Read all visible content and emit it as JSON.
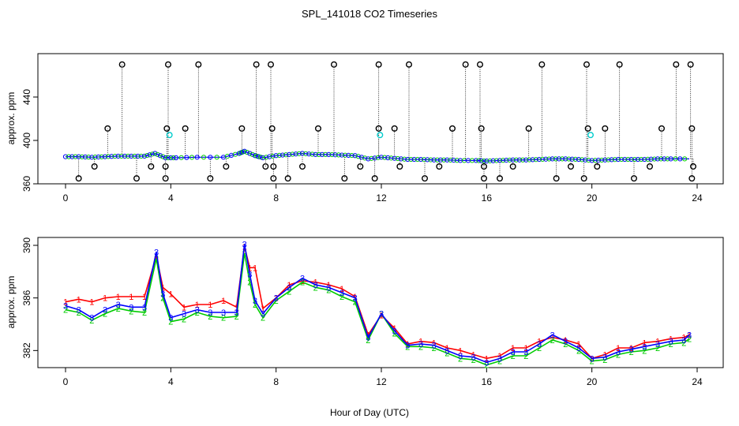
{
  "title": "SPL_141018  CO2 Timeseries",
  "xlabel": "Hour of Day (UTC)",
  "colors": {
    "series1": "#ff0000",
    "series2": "#00cc00",
    "series3": "#0000ff",
    "qc_black": "#000000",
    "qc_cyan": "#00cccc"
  },
  "chart_data": [
    {
      "type": "scatter",
      "panel": "top",
      "ylabel": "approx. ppm",
      "xlim": [
        0,
        24
      ],
      "ylim": [
        360,
        480
      ],
      "xticks": [
        0,
        4,
        8,
        12,
        16,
        20,
        24
      ],
      "yticks": [
        360,
        400,
        440
      ],
      "series": [
        {
          "values": [
            [
              0,
              385
            ],
            [
              0.5,
              385
            ],
            [
              1,
              384.5
            ],
            [
              1.5,
              385
            ],
            [
              2,
              385.5
            ],
            [
              2.5,
              385.5
            ],
            [
              3,
              385.5
            ],
            [
              3.4,
              388
            ],
            [
              3.8,
              384
            ],
            [
              4.2,
              384
            ],
            [
              5,
              384.5
            ],
            [
              6,
              384.5
            ],
            [
              6.6,
              388
            ],
            [
              6.8,
              390
            ],
            [
              7.2,
              386
            ],
            [
              7.5,
              384
            ],
            [
              8,
              386
            ],
            [
              8.5,
              387
            ],
            [
              9,
              388
            ],
            [
              9.5,
              387
            ],
            [
              10,
              387
            ],
            [
              10.5,
              386.5
            ],
            [
              11,
              386
            ],
            [
              11.5,
              383
            ],
            [
              12,
              384.5
            ],
            [
              12.5,
              383.5
            ],
            [
              13,
              382.5
            ],
            [
              13.5,
              382.5
            ],
            [
              14,
              382
            ],
            [
              14.5,
              382
            ],
            [
              15,
              381.5
            ],
            [
              15.6,
              381.5
            ],
            [
              16,
              381
            ],
            [
              16.5,
              381.5
            ],
            [
              17,
              382
            ],
            [
              17.5,
              382
            ],
            [
              18,
              382.5
            ],
            [
              18.5,
              383
            ],
            [
              19,
              383
            ],
            [
              19.5,
              382.5
            ],
            [
              20,
              381.5
            ],
            [
              20.5,
              382
            ],
            [
              21,
              382.5
            ],
            [
              21.5,
              382.5
            ],
            [
              22,
              382.5
            ],
            [
              22.5,
              383
            ],
            [
              23,
              383
            ],
            [
              23.7,
              383
            ]
          ]
        }
      ],
      "flagged_high": [
        [
          1.6,
          411
        ],
        [
          2.15,
          470
        ],
        [
          3.9,
          470
        ],
        [
          3.85,
          411
        ],
        [
          4.55,
          411
        ],
        [
          5.05,
          470
        ],
        [
          6.7,
          411
        ],
        [
          7.25,
          470
        ],
        [
          7.8,
          470
        ],
        [
          7.85,
          411
        ],
        [
          9.6,
          411
        ],
        [
          10.2,
          470
        ],
        [
          11.9,
          470
        ],
        [
          11.9,
          411
        ],
        [
          12.5,
          411
        ],
        [
          13.05,
          470
        ],
        [
          14.7,
          411
        ],
        [
          15.2,
          470
        ],
        [
          15.75,
          470
        ],
        [
          15.8,
          411
        ],
        [
          17.6,
          411
        ],
        [
          18.1,
          470
        ],
        [
          19.8,
          470
        ],
        [
          19.85,
          411
        ],
        [
          20.5,
          411
        ],
        [
          21.05,
          470
        ],
        [
          22.65,
          411
        ],
        [
          23.2,
          470
        ],
        [
          23.75,
          470
        ],
        [
          23.8,
          411
        ]
      ],
      "flagged_low": [
        [
          0.5,
          365
        ],
        [
          1.1,
          376
        ],
        [
          2.7,
          365
        ],
        [
          3.25,
          376
        ],
        [
          3.8,
          365
        ],
        [
          3.8,
          376
        ],
        [
          5.5,
          365
        ],
        [
          6.1,
          376
        ],
        [
          7.6,
          376
        ],
        [
          7.9,
          365
        ],
        [
          7.9,
          376
        ],
        [
          8.45,
          365
        ],
        [
          9.0,
          376
        ],
        [
          10.6,
          365
        ],
        [
          11.2,
          376
        ],
        [
          11.75,
          365
        ],
        [
          12.7,
          376
        ],
        [
          13.65,
          365
        ],
        [
          14.2,
          376
        ],
        [
          15.9,
          365
        ],
        [
          15.9,
          376
        ],
        [
          16.5,
          365
        ],
        [
          17.0,
          376
        ],
        [
          18.65,
          365
        ],
        [
          19.2,
          376
        ],
        [
          19.7,
          365
        ],
        [
          20.2,
          376
        ],
        [
          21.6,
          365
        ],
        [
          22.2,
          376
        ],
        [
          23.8,
          365
        ],
        [
          23.85,
          376
        ]
      ],
      "flagged_cyan": [
        [
          3.95,
          405
        ],
        [
          11.95,
          405
        ],
        [
          19.95,
          405
        ]
      ]
    },
    {
      "type": "line",
      "panel": "bottom",
      "ylabel": "approx. ppm",
      "xlim": [
        0,
        24
      ],
      "ylim": [
        380.7,
        390.6
      ],
      "xticks": [
        0,
        4,
        8,
        12,
        16,
        20,
        24
      ],
      "yticks": [
        382,
        386,
        390
      ],
      "series": [
        {
          "marker": "1",
          "values": [
            [
              0,
              385.7
            ],
            [
              0.5,
              385.9
            ],
            [
              1,
              385.7
            ],
            [
              1.5,
              386
            ],
            [
              2,
              386.1
            ],
            [
              2.5,
              386.1
            ],
            [
              3,
              386.1
            ],
            [
              3.45,
              389.2
            ],
            [
              3.7,
              386.8
            ],
            [
              4,
              386.3
            ],
            [
              4.5,
              385.3
            ],
            [
              5,
              385.5
            ],
            [
              5.5,
              385.5
            ],
            [
              6,
              385.8
            ],
            [
              6.5,
              385.3
            ],
            [
              6.8,
              389.9
            ],
            [
              7,
              388.3
            ],
            [
              7.2,
              388.3
            ],
            [
              7.5,
              385.2
            ],
            [
              8,
              386
            ],
            [
              8.5,
              387
            ],
            [
              9,
              387.3
            ],
            [
              9.5,
              387.2
            ],
            [
              10,
              387
            ],
            [
              10.5,
              386.7
            ],
            [
              11,
              386.1
            ],
            [
              11.5,
              383.2
            ],
            [
              12,
              384.7
            ],
            [
              12.5,
              383.7
            ],
            [
              13,
              382.5
            ],
            [
              13.5,
              382.7
            ],
            [
              14,
              382.6
            ],
            [
              14.5,
              382.2
            ],
            [
              15,
              382
            ],
            [
              15.5,
              381.7
            ],
            [
              16,
              381.4
            ],
            [
              16.5,
              381.6
            ],
            [
              17,
              382.2
            ],
            [
              17.5,
              382.2
            ],
            [
              18,
              382.7
            ],
            [
              18.5,
              383
            ],
            [
              19,
              382.8
            ],
            [
              19.5,
              382.5
            ],
            [
              20,
              381.4
            ],
            [
              20.5,
              381.7
            ],
            [
              21,
              382.2
            ],
            [
              21.5,
              382.2
            ],
            [
              22,
              382.6
            ],
            [
              22.5,
              382.7
            ],
            [
              23,
              382.9
            ],
            [
              23.5,
              383
            ],
            [
              23.7,
              383.2
            ]
          ]
        },
        {
          "marker": "2",
          "values": [
            [
              0,
              385.1
            ],
            [
              0.5,
              384.9
            ],
            [
              1,
              384.3
            ],
            [
              1.5,
              384.8
            ],
            [
              2,
              385.2
            ],
            [
              2.5,
              385
            ],
            [
              3,
              384.9
            ],
            [
              3.45,
              389
            ],
            [
              3.7,
              386
            ],
            [
              4,
              384.2
            ],
            [
              4.5,
              384.4
            ],
            [
              5,
              384.9
            ],
            [
              5.5,
              384.6
            ],
            [
              6,
              384.5
            ],
            [
              6.5,
              384.6
            ],
            [
              6.8,
              389.4
            ],
            [
              7,
              387.2
            ],
            [
              7.2,
              385.5
            ],
            [
              7.5,
              384.5
            ],
            [
              8,
              385.8
            ],
            [
              8.5,
              386.5
            ],
            [
              9,
              387.2
            ],
            [
              9.5,
              386.8
            ],
            [
              10,
              386.6
            ],
            [
              10.5,
              386.1
            ],
            [
              11,
              385.7
            ],
            [
              11.5,
              382.8
            ],
            [
              12,
              384.8
            ],
            [
              12.5,
              383.3
            ],
            [
              13,
              382.3
            ],
            [
              13.5,
              382.3
            ],
            [
              14,
              382.2
            ],
            [
              14.5,
              381.8
            ],
            [
              15,
              381.4
            ],
            [
              15.5,
              381.3
            ],
            [
              16,
              380.9
            ],
            [
              16.5,
              381.2
            ],
            [
              17,
              381.6
            ],
            [
              17.5,
              381.6
            ],
            [
              18,
              382.2
            ],
            [
              18.5,
              382.8
            ],
            [
              19,
              382.5
            ],
            [
              19.5,
              382
            ],
            [
              20,
              381.2
            ],
            [
              20.5,
              381.3
            ],
            [
              21,
              381.7
            ],
            [
              21.5,
              381.9
            ],
            [
              22,
              382
            ],
            [
              22.5,
              382.2
            ],
            [
              23,
              382.5
            ],
            [
              23.5,
              382.6
            ],
            [
              23.7,
              382.9
            ]
          ]
        },
        {
          "marker": "3",
          "values": [
            [
              0,
              385.4
            ],
            [
              0.5,
              385.1
            ],
            [
              1,
              384.5
            ],
            [
              1.5,
              385.1
            ],
            [
              2,
              385.5
            ],
            [
              2.5,
              385.3
            ],
            [
              3,
              385.3
            ],
            [
              3.45,
              389.5
            ],
            [
              3.7,
              386.3
            ],
            [
              4,
              384.5
            ],
            [
              4.5,
              384.8
            ],
            [
              5,
              385.1
            ],
            [
              5.5,
              384.9
            ],
            [
              6,
              384.9
            ],
            [
              6.5,
              384.9
            ],
            [
              6.8,
              390.1
            ],
            [
              7,
              387.8
            ],
            [
              7.2,
              385.8
            ],
            [
              7.5,
              384.8
            ],
            [
              8,
              386
            ],
            [
              8.5,
              386.8
            ],
            [
              9,
              387.5
            ],
            [
              9.5,
              387
            ],
            [
              10,
              386.8
            ],
            [
              10.5,
              386.4
            ],
            [
              11,
              386
            ],
            [
              11.5,
              383
            ],
            [
              12,
              384.8
            ],
            [
              12.5,
              383.5
            ],
            [
              13,
              382.4
            ],
            [
              13.5,
              382.5
            ],
            [
              14,
              382.4
            ],
            [
              14.5,
              382
            ],
            [
              15,
              381.6
            ],
            [
              15.5,
              381.5
            ],
            [
              16,
              381.1
            ],
            [
              16.5,
              381.4
            ],
            [
              17,
              381.9
            ],
            [
              17.5,
              381.9
            ],
            [
              18,
              382.5
            ],
            [
              18.5,
              383.2
            ],
            [
              19,
              382.7
            ],
            [
              19.5,
              382.2
            ],
            [
              20,
              381.4
            ],
            [
              20.5,
              381.5
            ],
            [
              21,
              381.9
            ],
            [
              21.5,
              382.1
            ],
            [
              22,
              382.3
            ],
            [
              22.5,
              382.5
            ],
            [
              23,
              382.7
            ],
            [
              23.5,
              382.8
            ],
            [
              23.7,
              383.2
            ]
          ]
        }
      ]
    }
  ]
}
